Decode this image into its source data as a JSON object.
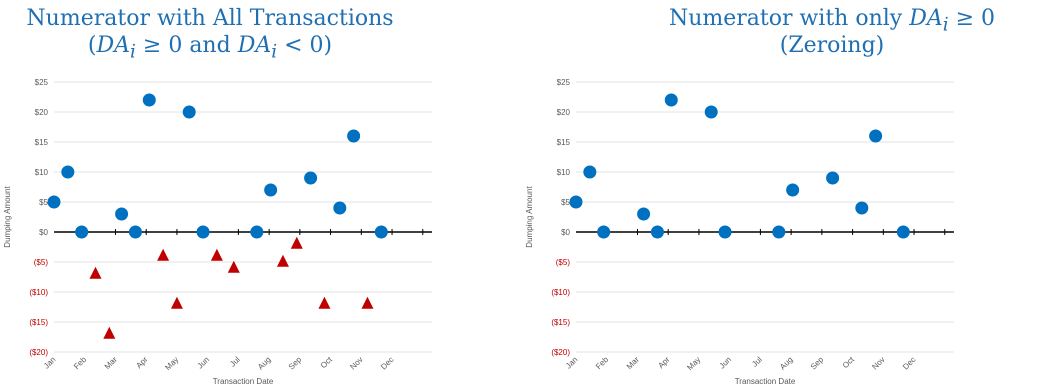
{
  "chart_data": [
    {
      "type": "scatter",
      "title_line1": "Numerator with All Transactions",
      "title_line2_parts": [
        "(",
        "DA",
        "i",
        " ≥ 0 and ",
        "DA",
        "i",
        " < 0)"
      ],
      "xlabel": "Transaction Date",
      "ylabel": "Dumping Amount",
      "ylim": [
        -20,
        25
      ],
      "yticks": [
        {
          "v": 25,
          "label": "$25"
        },
        {
          "v": 20,
          "label": "$20"
        },
        {
          "v": 15,
          "label": "$15"
        },
        {
          "v": 10,
          "label": "$10"
        },
        {
          "v": 5,
          "label": "$5"
        },
        {
          "v": 0,
          "label": "$0"
        },
        {
          "v": -5,
          "label": "($5)"
        },
        {
          "v": -10,
          "label": "($10)"
        },
        {
          "v": -15,
          "label": "($15)"
        },
        {
          "v": -20,
          "label": "($20)"
        }
      ],
      "xlim": [
        0,
        12.3
      ],
      "months": [
        "Jan",
        "Feb",
        "Mar",
        "Apr",
        "May",
        "Jun",
        "Jul",
        "Aug",
        "Sep",
        "Oct",
        "Nov",
        "Dec"
      ],
      "grid": true,
      "series": [
        {
          "marker": "circle",
          "color": "#0070c0",
          "points": [
            [
              0.0,
              5
            ],
            [
              0.45,
              10
            ],
            [
              0.9,
              0
            ],
            [
              2.2,
              3
            ],
            [
              2.65,
              0
            ],
            [
              3.1,
              22
            ],
            [
              4.4,
              20
            ],
            [
              4.85,
              0
            ],
            [
              6.6,
              0
            ],
            [
              7.05,
              7
            ],
            [
              8.35,
              9
            ],
            [
              9.3,
              4
            ],
            [
              9.75,
              16
            ],
            [
              10.65,
              0
            ]
          ]
        },
        {
          "marker": "triangle",
          "color": "#c00000",
          "points": [
            [
              1.35,
              -7
            ],
            [
              1.8,
              -17
            ],
            [
              3.55,
              -4
            ],
            [
              4.0,
              -12
            ],
            [
              5.3,
              -4
            ],
            [
              5.85,
              -6
            ],
            [
              7.45,
              -5
            ],
            [
              7.9,
              -2
            ],
            [
              8.8,
              -12
            ],
            [
              10.2,
              -12
            ]
          ]
        }
      ]
    },
    {
      "type": "scatter",
      "title_line1_parts": [
        "Numerator with only ",
        "DA",
        "i",
        " ≥ 0"
      ],
      "title_line2": "(Zeroing)",
      "xlabel": "Transaction Date",
      "ylabel": "Dumping Amount",
      "ylim": [
        -20,
        25
      ],
      "yticks": [
        {
          "v": 25,
          "label": "$25"
        },
        {
          "v": 20,
          "label": "$20"
        },
        {
          "v": 15,
          "label": "$15"
        },
        {
          "v": 10,
          "label": "$10"
        },
        {
          "v": 5,
          "label": "$5"
        },
        {
          "v": 0,
          "label": "$0"
        },
        {
          "v": -5,
          "label": "($5)"
        },
        {
          "v": -10,
          "label": "($10)"
        },
        {
          "v": -15,
          "label": "($15)"
        },
        {
          "v": -20,
          "label": "($20)"
        }
      ],
      "xlim": [
        0,
        12.3
      ],
      "months": [
        "Jan",
        "Feb",
        "Mar",
        "Apr",
        "May",
        "Jun",
        "Jul",
        "Aug",
        "Sep",
        "Oct",
        "Nov",
        "Dec"
      ],
      "grid": true,
      "series": [
        {
          "marker": "circle",
          "color": "#0070c0",
          "points": [
            [
              0.0,
              5
            ],
            [
              0.45,
              10
            ],
            [
              0.9,
              0
            ],
            [
              2.2,
              3
            ],
            [
              2.65,
              0
            ],
            [
              3.1,
              22
            ],
            [
              4.4,
              20
            ],
            [
              4.85,
              0
            ],
            [
              6.6,
              0
            ],
            [
              7.05,
              7
            ],
            [
              8.35,
              9
            ],
            [
              9.3,
              4
            ],
            [
              9.75,
              16
            ],
            [
              10.65,
              0
            ]
          ]
        }
      ]
    }
  ]
}
